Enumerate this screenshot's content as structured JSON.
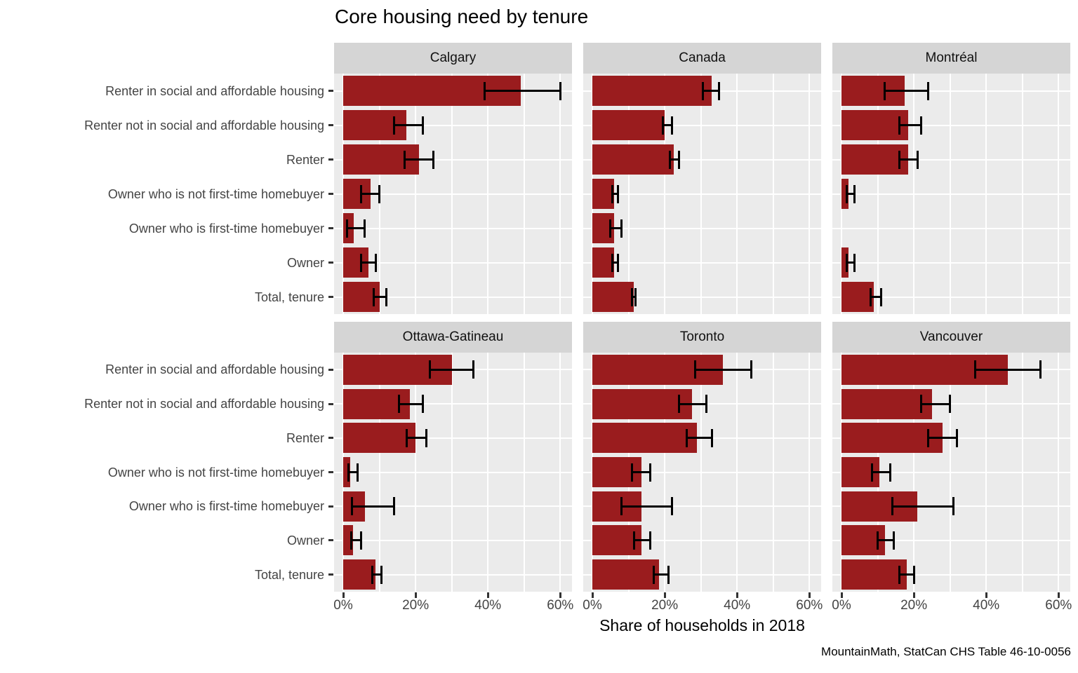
{
  "title": "Core housing need by tenure",
  "x_axis": {
    "label": "Share of households in 2018",
    "tick_labels": [
      "0%",
      "20%",
      "40%",
      "60%"
    ],
    "tick_values": [
      0,
      20,
      40,
      60
    ]
  },
  "caption": "MountainMath, StatCan CHS Table 46-10-0056",
  "colors": {
    "bar": "#9A1C1E",
    "panel_bg": "#EBEBEB",
    "strip_bg": "#D5D5D5",
    "grid": "#FFFFFF",
    "axis_text": "#444444",
    "strip_text": "#111111",
    "error_bar": "#000000",
    "tick_mark": "#333333"
  },
  "chart_data": {
    "type": "bar",
    "orientation": "horizontal",
    "unit": "percent",
    "title": "Core housing need by tenure",
    "xlabel": "Share of households in 2018",
    "xlim": [
      0,
      63
    ],
    "x_tick_values": [
      0,
      20,
      40,
      60
    ],
    "minor_gridlines": [
      10,
      30,
      50
    ],
    "grid": true,
    "error_bars": true,
    "legend": "none",
    "categories": [
      "Renter in social and affordable housing",
      "Renter not in social and affordable housing",
      "Renter",
      "Owner who is not first-time homebuyer",
      "Owner who is first-time homebuyer",
      "Owner",
      "Total, tenure"
    ],
    "facets": [
      {
        "name": "Calgary",
        "values": [
          49,
          17.5,
          21,
          7.5,
          3,
          7,
          10
        ],
        "ci_low": [
          39,
          14,
          17,
          5,
          1,
          5,
          8.5
        ],
        "ci_high": [
          60,
          22,
          25,
          10,
          6,
          9,
          12
        ]
      },
      {
        "name": "Canada",
        "values": [
          33,
          20,
          22.5,
          6,
          6,
          6,
          11.5
        ],
        "ci_low": [
          30.5,
          19.5,
          21.5,
          5.5,
          5,
          5.5,
          11
        ],
        "ci_high": [
          35,
          22,
          24,
          7,
          8,
          7,
          12
        ]
      },
      {
        "name": "Montréal",
        "values": [
          17.5,
          18.5,
          18.5,
          2,
          null,
          2,
          9
        ],
        "ci_low": [
          12,
          16,
          16,
          1.5,
          null,
          1.5,
          8
        ],
        "ci_high": [
          24,
          22,
          21,
          3.5,
          null,
          3.5,
          11
        ]
      },
      {
        "name": "Ottawa-Gatineau",
        "values": [
          30,
          18.5,
          20,
          2,
          6,
          2.7,
          9
        ],
        "ci_low": [
          24,
          15.5,
          17.5,
          1.5,
          2.5,
          2.2,
          8
        ],
        "ci_high": [
          36,
          22,
          23,
          4,
          14,
          5,
          10.5
        ]
      },
      {
        "name": "Toronto",
        "values": [
          36,
          27.5,
          29,
          13.5,
          13.5,
          13.5,
          18.5
        ],
        "ci_low": [
          28.5,
          24,
          26,
          11,
          8,
          11.5,
          17
        ],
        "ci_high": [
          44,
          31.5,
          33,
          16,
          22,
          16,
          21
        ]
      },
      {
        "name": "Vancouver",
        "values": [
          46,
          25,
          28,
          10.5,
          21,
          12,
          18
        ],
        "ci_low": [
          37,
          22,
          24,
          8.5,
          14,
          10,
          16
        ],
        "ci_high": [
          55,
          30,
          32,
          13.5,
          31,
          14.5,
          20
        ]
      }
    ]
  }
}
